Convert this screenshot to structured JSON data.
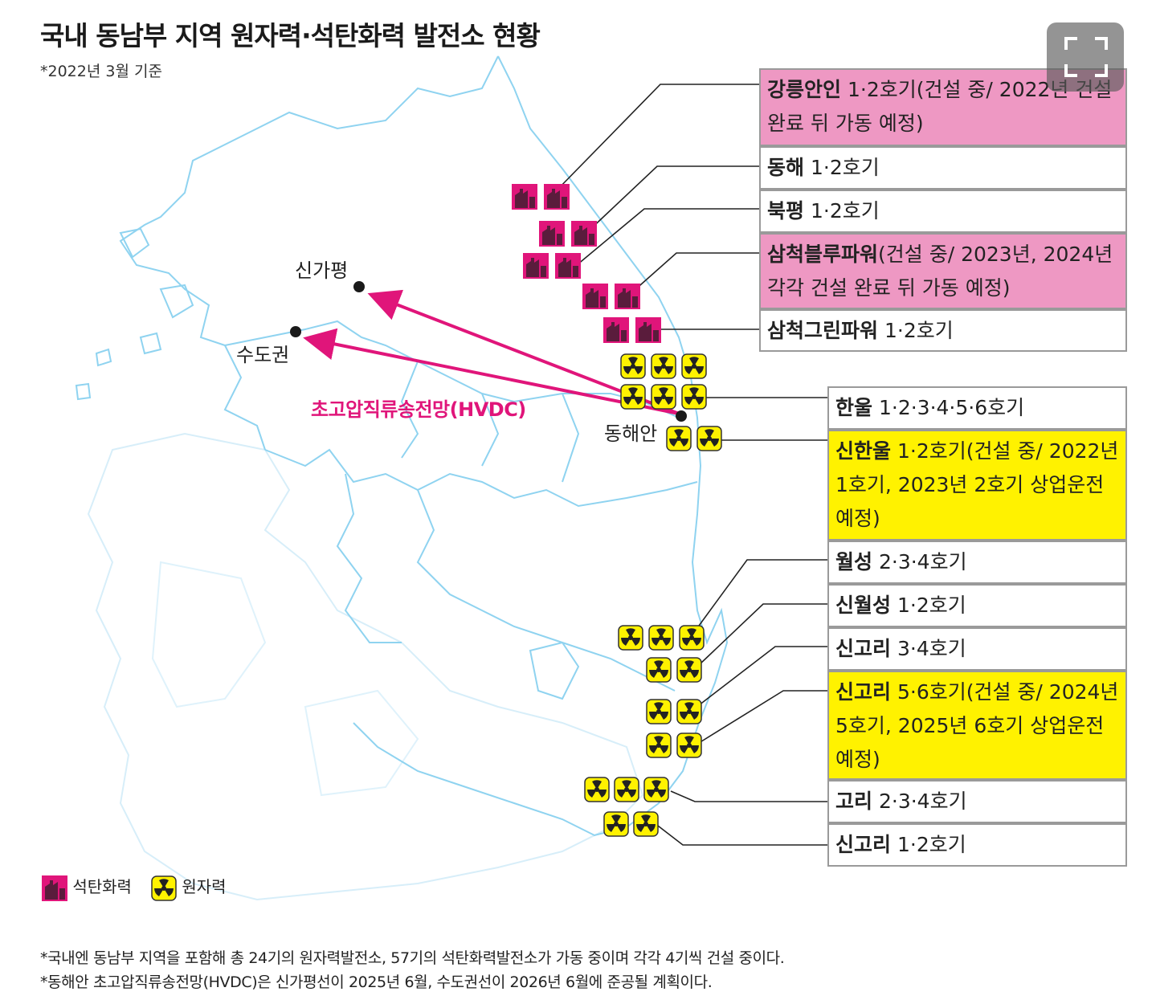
{
  "title": "국내 동남부 지역 원자력·석탄화력 발전소 현황",
  "subtitle": "*2022년 3월 기준",
  "colors": {
    "coal": "#e0157a",
    "nuclear": "#fff200",
    "pink_box": "#ee98c3",
    "yellow_box": "#fff200",
    "hvdc": "#e0157a",
    "coast": "#8fd3f0"
  },
  "cities": {
    "singapyeong": "신가평",
    "sudogwon": "수도권",
    "donghaean": "동해안"
  },
  "hvdc_label": "초고압직류송전망(HVDC)",
  "plants": [
    {
      "name": "강릉안인",
      "detail": " 1·2호기(건설 중/ 2022년 건설 완료 뒤 가동 예정)",
      "type": "coal",
      "status": "construction"
    },
    {
      "name": "동해",
      "detail": " 1·2호기",
      "type": "coal",
      "status": "operating"
    },
    {
      "name": "북평",
      "detail": " 1·2호기",
      "type": "coal",
      "status": "operating"
    },
    {
      "name": "삼척블루파워",
      "detail": "(건설 중/ 2023년, 2024년 각각 건설 완료 뒤 가동 예정)",
      "type": "coal",
      "status": "construction"
    },
    {
      "name": "삼척그린파워",
      "detail": " 1·2호기",
      "type": "coal",
      "status": "operating"
    },
    {
      "name": "한울",
      "detail": " 1·2·3·4·5·6호기",
      "type": "nuclear",
      "status": "operating"
    },
    {
      "name": "신한울",
      "detail": " 1·2호기(건설 중/ 2022년 1호기, 2023년 2호기 상업운전 예정)",
      "type": "nuclear",
      "status": "construction"
    },
    {
      "name": "월성",
      "detail": " 2·3·4호기",
      "type": "nuclear",
      "status": "operating"
    },
    {
      "name": "신월성",
      "detail": " 1·2호기",
      "type": "nuclear",
      "status": "operating"
    },
    {
      "name": "신고리",
      "detail": " 3·4호기",
      "type": "nuclear",
      "status": "operating"
    },
    {
      "name": "신고리",
      "detail": " 5·6호기(건설 중/ 2024년 5호기, 2025년 6호기 상업운전 예정)",
      "type": "nuclear",
      "status": "construction"
    },
    {
      "name": "고리",
      "detail": " 2·3·4호기",
      "type": "nuclear",
      "status": "operating"
    },
    {
      "name": "신고리",
      "detail": " 1·2호기",
      "type": "nuclear",
      "status": "operating"
    }
  ],
  "legend": {
    "coal": "석탄화력",
    "nuclear": "원자력"
  },
  "footnotes": [
    "*국내엔 동남부 지역을 포함해 총 24기의 원자력발전소, 57기의 석탄화력발전소가 가동 중이며 각각 4기씩 건설 중이다.",
    "*동해안 초고압직류송전망(HVDC)은 신가평선이 2025년 6월, 수도권선이 2026년 6월에 준공될 계획이다."
  ],
  "icons": {
    "expand": "expand-icon",
    "coal": "coal-plant-icon",
    "nuclear": "radiation-icon"
  }
}
